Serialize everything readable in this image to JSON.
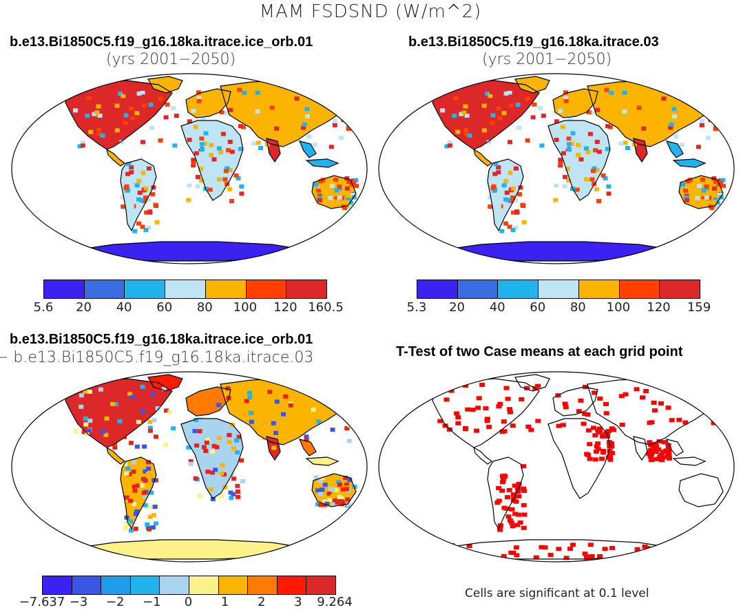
{
  "title": "MAM FSDSND (W/m^2)",
  "panels": {
    "top_left": {
      "case": "b.e13.Bi1850C5.f19_g16.18ka.itrace.ice_orb.01",
      "years": "(yrs 2001−2050)",
      "colorbar": {
        "colors": [
          "#3b22f0",
          "#3a6de0",
          "#20b4ef",
          "#bfe4f3",
          "#fbb400",
          "#ff4000",
          "#dc2828"
        ],
        "ticks": [
          "5.6",
          "20",
          "40",
          "60",
          "80",
          "100",
          "120",
          "160.5"
        ]
      }
    },
    "top_right": {
      "case": "b.e13.Bi1850C5.f19_g16.18ka.itrace.03",
      "years": "(yrs 2001−2050)",
      "colorbar": {
        "colors": [
          "#3b22f0",
          "#3a6de0",
          "#20b4ef",
          "#bfe4f3",
          "#fbb400",
          "#ff4000",
          "#dc2828"
        ],
        "ticks": [
          "5.3",
          "20",
          "40",
          "60",
          "80",
          "100",
          "120",
          "159"
        ]
      }
    },
    "bottom_left": {
      "case": "b.e13.Bi1850C5.f19_g16.18ka.itrace.ice_orb.01",
      "minus_case": "− b.e13.Bi1850C5.f19_g16.18ka.itrace.03",
      "colorbar": {
        "colors": [
          "#3b22f0",
          "#3a56e6",
          "#1f9ded",
          "#20b4ef",
          "#a9d4f0",
          "#fbf28a",
          "#fbb400",
          "#ff7a00",
          "#ff1a00",
          "#dc2828"
        ],
        "ticks": [
          "−7.637",
          "−3",
          "−2",
          "−1",
          "0",
          "1",
          "2",
          "3",
          "9.264"
        ]
      }
    },
    "bottom_right": {
      "title": "T-Test of two Case means at each grid point",
      "note": "Cells are significant at 0.1 level",
      "color": "#ff0000"
    }
  }
}
